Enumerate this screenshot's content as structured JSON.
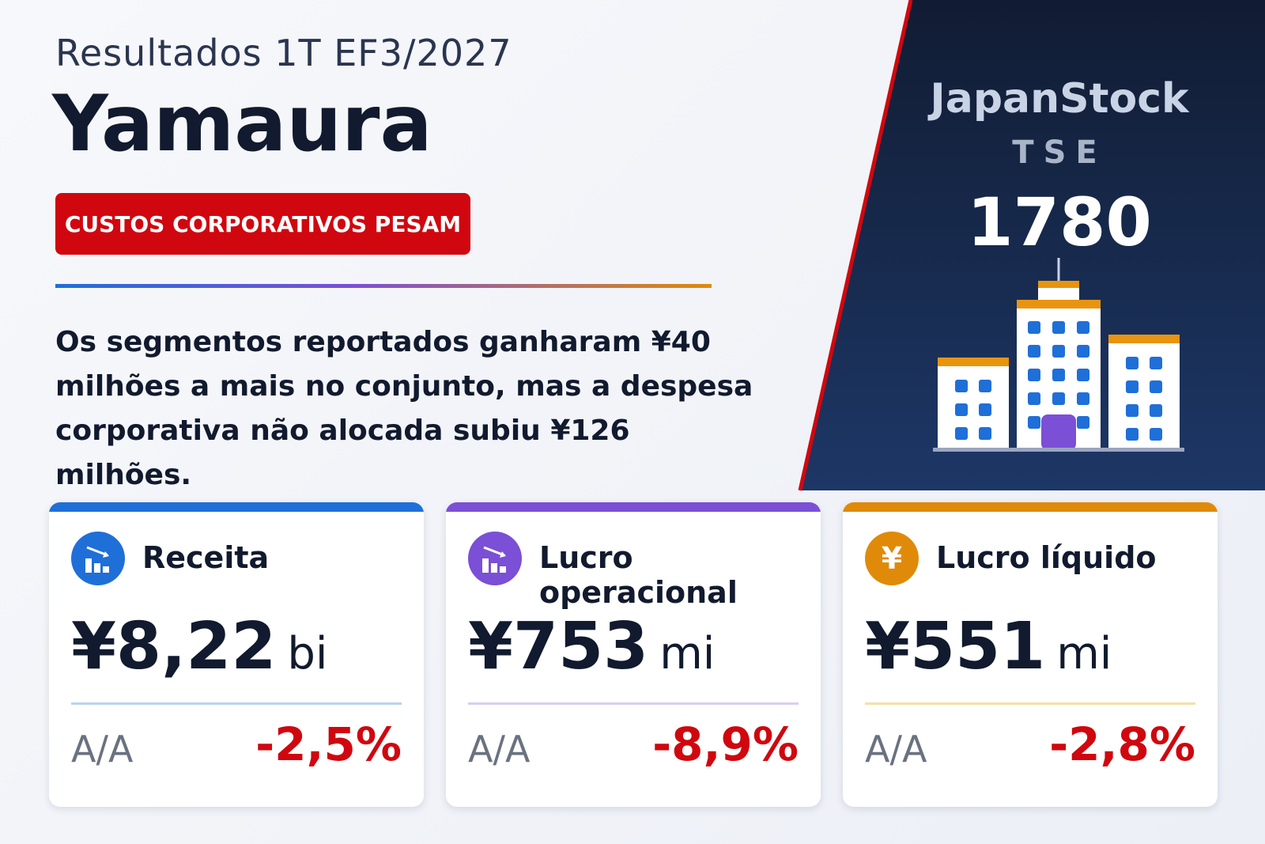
{
  "header": {
    "subtitle": "Resultados 1T EF3/2027",
    "title": "Yamaura",
    "badge": "CUSTOS CORPORATIVOS PESAM"
  },
  "summary": "Os segmentos reportados ganharam ¥40 milhões a mais no conjunto, mas a despesa corporativa não alocada subiu ¥126 milhões.",
  "brand": {
    "name": "JapanStock",
    "market": "TSE",
    "code": "1780"
  },
  "cards": [
    {
      "label": "Receita",
      "value": "¥8,22",
      "unit": "bi",
      "yoy_label": "A/A",
      "change": "-2,5%"
    },
    {
      "label": "Lucro operacional",
      "value": "¥753",
      "unit": "mi",
      "yoy_label": "A/A",
      "change": "-8,9%"
    },
    {
      "label": "Lucro líquido",
      "value": "¥551",
      "unit": "mi",
      "yoy_label": "A/A",
      "change": "-2,8%",
      "icon": "¥"
    }
  ]
}
